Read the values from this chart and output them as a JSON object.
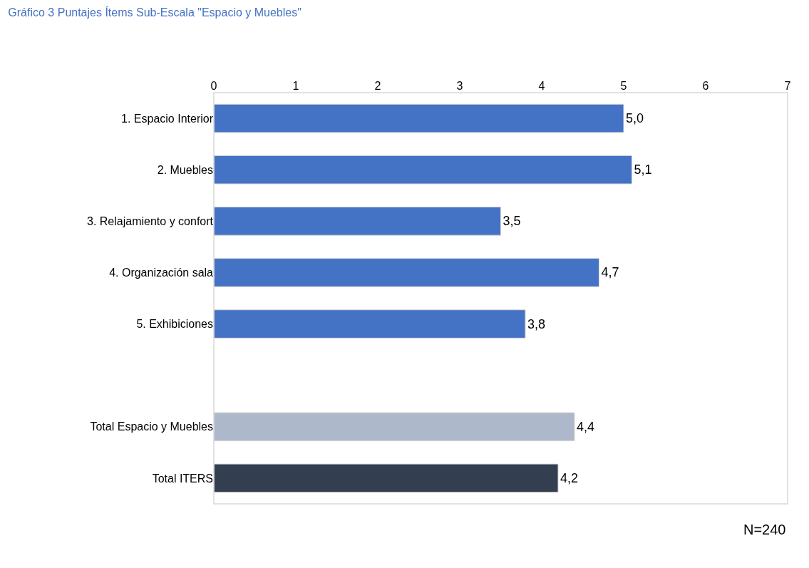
{
  "chart_data": {
    "type": "bar",
    "orientation": "horizontal",
    "title": "Gráfico 3 Puntajes Ítems Sub-Escala \"Espacio y Muebles\"",
    "categories": [
      "1. Espacio Interior",
      "2. Muebles",
      "3. Relajamiento y confort",
      "4. Organización sala",
      "5. Exhibiciones",
      null,
      "Total Espacio y Muebles",
      "Total ITERS"
    ],
    "values": [
      5.0,
      5.1,
      3.5,
      4.7,
      3.8,
      null,
      4.4,
      4.2
    ],
    "colors": [
      "#4472c4",
      "#4472c4",
      "#4472c4",
      "#4472c4",
      "#4472c4",
      null,
      "#adb9ca",
      "#333f50"
    ],
    "value_labels": [
      "5,0",
      "5,1",
      "3,5",
      "4,7",
      "3,8",
      null,
      "4,4",
      "4,2"
    ],
    "xlim": [
      0,
      7
    ],
    "xticks": [
      0,
      1,
      2,
      3,
      4,
      5,
      6,
      7
    ],
    "annotations": [
      "N=240"
    ]
  }
}
